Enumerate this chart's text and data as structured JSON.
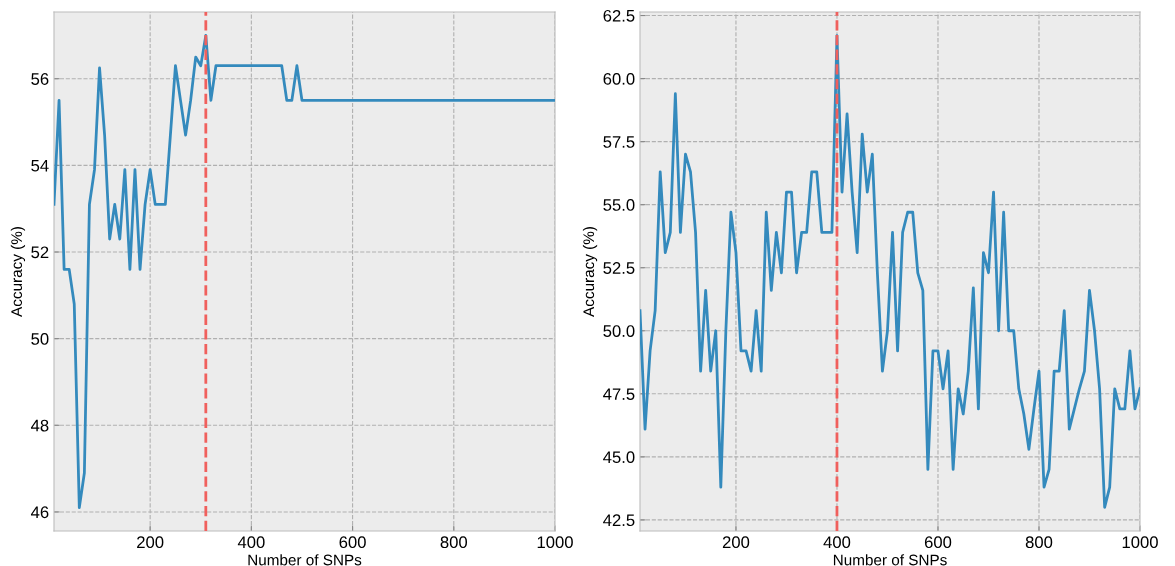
{
  "chart_data": [
    {
      "type": "line",
      "xlabel": "Number of SNPs",
      "ylabel": "Accuracy (%)",
      "x": [
        10,
        20,
        30,
        40,
        50,
        60,
        70,
        80,
        90,
        100,
        110,
        120,
        130,
        140,
        150,
        160,
        170,
        180,
        190,
        200,
        210,
        220,
        230,
        240,
        250,
        260,
        270,
        280,
        290,
        300,
        310,
        320,
        330,
        340,
        350,
        360,
        370,
        380,
        390,
        400,
        410,
        420,
        430,
        440,
        450,
        460,
        470,
        480,
        490,
        500,
        510,
        520,
        530,
        540,
        550,
        560,
        570,
        580,
        590,
        600,
        610,
        620,
        630,
        640,
        650,
        660,
        670,
        680,
        690,
        700,
        710,
        720,
        730,
        740,
        750,
        760,
        770,
        780,
        790,
        800,
        810,
        820,
        830,
        840,
        850,
        860,
        870,
        880,
        890,
        900,
        910,
        920,
        930,
        940,
        950,
        960,
        970,
        980,
        990,
        1000
      ],
      "series": [
        {
          "color": "#348abd",
          "values": [
            53.1,
            55.5,
            51.6,
            51.6,
            50.8,
            46.1,
            46.9,
            53.1,
            53.9,
            56.25,
            54.7,
            52.3,
            53.1,
            52.3,
            53.9,
            51.6,
            53.9,
            51.6,
            53.1,
            53.9,
            53.1,
            53.1,
            53.1,
            54.7,
            56.3,
            55.5,
            54.7,
            55.5,
            56.5,
            56.3,
            57.0,
            55.5,
            56.3,
            56.3,
            56.3,
            56.3,
            56.3,
            56.3,
            56.3,
            56.3,
            56.3,
            56.3,
            56.3,
            56.3,
            56.3,
            56.3,
            55.5,
            55.5,
            56.3,
            55.5,
            55.5,
            55.5,
            55.5,
            55.5,
            55.5,
            55.5,
            55.5,
            55.5,
            55.5,
            55.5,
            55.5,
            55.5,
            55.5,
            55.5,
            55.5,
            55.5,
            55.5,
            55.5,
            55.5,
            55.5,
            55.5,
            55.5,
            55.5,
            55.5,
            55.5,
            55.5,
            55.5,
            55.5,
            55.5,
            55.5,
            55.5,
            55.5,
            55.5,
            55.5,
            55.5,
            55.5,
            55.5,
            55.5,
            55.5,
            55.5,
            55.5,
            55.5,
            55.5,
            55.5,
            55.5,
            55.5,
            55.5,
            55.5,
            55.5,
            55.5
          ]
        }
      ],
      "xlim": [
        10,
        1000
      ],
      "xticks": [
        200,
        400,
        600,
        800,
        1000
      ],
      "ylim": [
        45.56,
        57.54
      ],
      "yticks": [
        46,
        48,
        50,
        52,
        54,
        56
      ],
      "ref_lines": [
        {
          "axis": "x",
          "value": 310,
          "color": "#f0605d",
          "line_style": "dashed"
        }
      ],
      "grid": true,
      "line_style": "solid",
      "marker": "none"
    },
    {
      "type": "line",
      "xlabel": "Number of SNPs",
      "ylabel": "Accuracy (%)",
      "x": [
        10,
        20,
        30,
        40,
        50,
        60,
        70,
        80,
        90,
        100,
        110,
        120,
        130,
        140,
        150,
        160,
        170,
        180,
        190,
        200,
        210,
        220,
        230,
        240,
        250,
        260,
        270,
        280,
        290,
        300,
        310,
        320,
        330,
        340,
        350,
        360,
        370,
        380,
        390,
        400,
        410,
        420,
        430,
        440,
        450,
        460,
        470,
        480,
        490,
        500,
        510,
        520,
        530,
        540,
        550,
        560,
        570,
        580,
        590,
        600,
        610,
        620,
        630,
        640,
        650,
        660,
        670,
        680,
        690,
        700,
        710,
        720,
        730,
        740,
        750,
        760,
        770,
        780,
        790,
        800,
        810,
        820,
        830,
        840,
        850,
        860,
        870,
        880,
        890,
        900,
        910,
        920,
        930,
        940,
        950,
        960,
        970,
        980,
        990,
        1000
      ],
      "series": [
        {
          "color": "#348abd",
          "values": [
            50.8,
            46.1,
            49.2,
            50.8,
            56.3,
            53.1,
            53.9,
            59.4,
            53.9,
            57.0,
            56.3,
            53.9,
            48.4,
            51.6,
            48.4,
            50.0,
            43.8,
            50.0,
            54.7,
            53.1,
            49.2,
            49.2,
            48.4,
            50.8,
            48.4,
            54.7,
            51.6,
            53.9,
            52.3,
            55.5,
            55.5,
            52.3,
            53.9,
            53.9,
            56.3,
            56.3,
            53.9,
            53.9,
            53.9,
            61.7,
            55.5,
            58.6,
            55.5,
            53.1,
            57.8,
            55.5,
            57.0,
            52.3,
            48.4,
            50.0,
            53.9,
            49.2,
            53.9,
            54.7,
            54.7,
            52.3,
            51.6,
            44.5,
            49.2,
            49.2,
            47.7,
            49.2,
            44.5,
            47.7,
            46.7,
            48.4,
            51.7,
            46.9,
            53.1,
            52.3,
            55.5,
            50.0,
            54.7,
            50.0,
            50.0,
            47.7,
            46.7,
            45.3,
            46.9,
            48.4,
            43.8,
            44.5,
            48.4,
            48.4,
            50.8,
            46.1,
            46.9,
            47.7,
            48.4,
            51.6,
            50.0,
            47.7,
            43.0,
            43.8,
            47.7,
            46.9,
            46.9,
            49.2,
            46.9,
            47.7
          ]
        }
      ],
      "xlim": [
        10,
        1000
      ],
      "xticks": [
        200,
        400,
        600,
        800,
        1000
      ],
      "ylim": [
        42.06,
        62.64
      ],
      "yticks": [
        {
          "value": 42.5,
          "label": "42.5"
        },
        {
          "value": 45,
          "label": "45.0"
        },
        {
          "value": 47.5,
          "label": "47.5"
        },
        {
          "value": 50,
          "label": "50.0"
        },
        {
          "value": 52.5,
          "label": "52.5"
        },
        {
          "value": 55,
          "label": "55.0"
        },
        {
          "value": 57.5,
          "label": "57.5"
        },
        {
          "value": 60,
          "label": "60.0"
        },
        {
          "value": 62.5,
          "label": "62.5"
        }
      ],
      "ref_lines": [
        {
          "axis": "x",
          "value": 400,
          "color": "#f0605d",
          "line_style": "dashed"
        }
      ],
      "grid": true,
      "line_style": "solid",
      "marker": "none"
    }
  ]
}
